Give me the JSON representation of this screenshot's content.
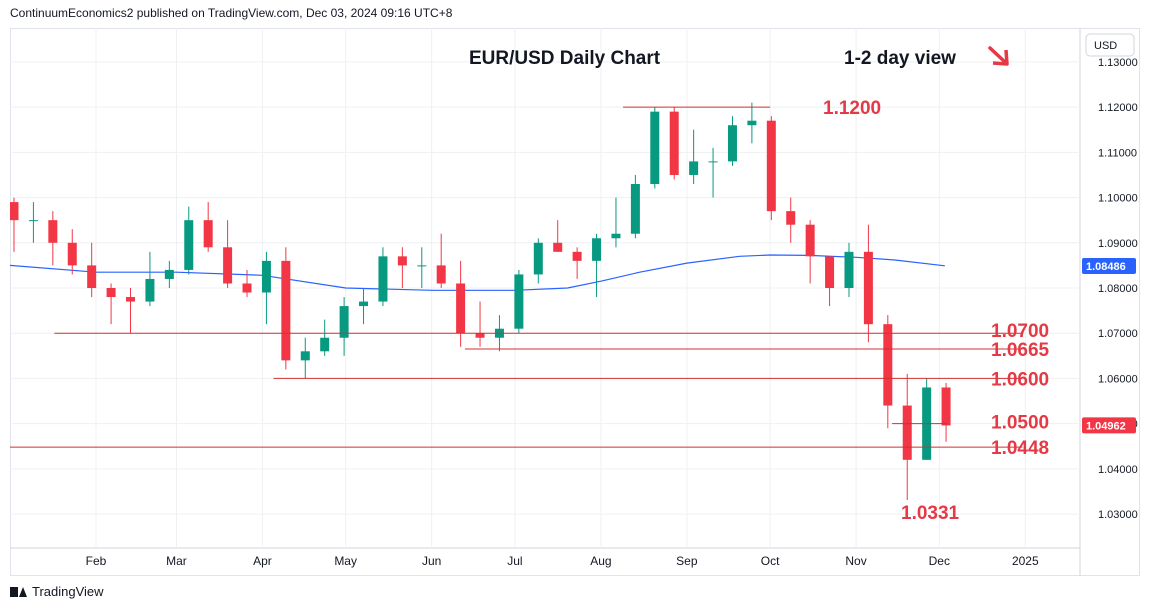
{
  "header": {
    "published_by": "ContinuumEconomics2 published on TradingView.com, Dec 03, 2024 09:16 UTC+8"
  },
  "footer": {
    "brand": "TradingView"
  },
  "colors": {
    "up": "#089981",
    "down": "#f23645",
    "level_line": "#d32f2f",
    "level_text": "#e53945",
    "ma": "#2962ff",
    "grid": "#eef0f3",
    "axis_text": "#131722"
  },
  "chart_data": {
    "type": "candlestick",
    "title": "EUR/USD Daily Chart",
    "subtitle": "1-2 day view",
    "view_arrow": "down-right-arrow",
    "currency": "USD",
    "ylim": [
      1.0225,
      1.1375
    ],
    "y_ticks": [
      "1.13000",
      "1.12000",
      "1.11000",
      "1.10000",
      "1.09000",
      "1.08000",
      "1.07000",
      "1.06000",
      "1.05000",
      "1.04000",
      "1.03000"
    ],
    "x_ticks": [
      "Feb",
      "Mar",
      "Apr",
      "May",
      "Jun",
      "Jul",
      "Aug",
      "Sep",
      "Oct",
      "Nov",
      "Dec",
      "2025"
    ],
    "x_tick_dates": [
      "2024-02-01",
      "2024-03-01",
      "2024-04-01",
      "2024-05-01",
      "2024-06-01",
      "2024-07-01",
      "2024-08-01",
      "2024-09-01",
      "2024-10-01",
      "2024-11-01",
      "2024-12-01",
      "2025-01-01"
    ],
    "price_badges": [
      {
        "label": "1.08486",
        "value": 1.08486,
        "color": "#2962ff"
      },
      {
        "label": "1.04962",
        "value": 1.04962,
        "color": "#f23645"
      }
    ],
    "levels": [
      {
        "label": "1.1200",
        "value": 1.12,
        "from": "2024-08-09",
        "to": "2024-10-01"
      },
      {
        "label": "1.0700",
        "value": 1.07,
        "from": "2024-01-17",
        "to": "2024-12-31"
      },
      {
        "label": "1.0665",
        "value": 1.0665,
        "from": "2024-06-13",
        "to": "2024-12-31"
      },
      {
        "label": "1.0600",
        "value": 1.06,
        "from": "2024-04-05",
        "to": "2024-12-31"
      },
      {
        "label": "1.0500",
        "value": 1.05,
        "from": "2024-11-14",
        "to": "2024-12-04"
      },
      {
        "label": "1.0448",
        "value": 1.0448,
        "from": "2024-01-01",
        "to": "2024-12-31"
      }
    ],
    "annotations": [
      {
        "label": "1.0331",
        "value": 1.0331,
        "date": "2024-11-22"
      }
    ],
    "moving_average": [
      [
        "2024-01-01",
        1.085
      ],
      [
        "2024-02-01",
        1.0835
      ],
      [
        "2024-03-01",
        1.0835
      ],
      [
        "2024-04-01",
        1.0828
      ],
      [
        "2024-05-01",
        1.08
      ],
      [
        "2024-06-01",
        1.0795
      ],
      [
        "2024-07-01",
        1.0795
      ],
      [
        "2024-07-20",
        1.08
      ],
      [
        "2024-08-01",
        1.0815
      ],
      [
        "2024-08-15",
        1.0835
      ],
      [
        "2024-09-01",
        1.0855
      ],
      [
        "2024-09-20",
        1.087
      ],
      [
        "2024-10-01",
        1.0873
      ],
      [
        "2024-10-15",
        1.0872
      ],
      [
        "2024-11-01",
        1.0868
      ],
      [
        "2024-11-15",
        1.0862
      ],
      [
        "2024-12-03",
        1.0849
      ]
    ],
    "ohlc_weekly": [
      {
        "date": "2024-01-01",
        "o": 1.099,
        "h": 1.1,
        "l": 1.088,
        "c": 1.095
      },
      {
        "date": "2024-01-08",
        "o": 1.095,
        "h": 1.099,
        "l": 1.09,
        "c": 1.095
      },
      {
        "date": "2024-01-15",
        "o": 1.095,
        "h": 1.097,
        "l": 1.085,
        "c": 1.09
      },
      {
        "date": "2024-01-22",
        "o": 1.09,
        "h": 1.093,
        "l": 1.083,
        "c": 1.085
      },
      {
        "date": "2024-01-29",
        "o": 1.085,
        "h": 1.09,
        "l": 1.078,
        "c": 1.08
      },
      {
        "date": "2024-02-05",
        "o": 1.08,
        "h": 1.081,
        "l": 1.072,
        "c": 1.078
      },
      {
        "date": "2024-02-12",
        "o": 1.078,
        "h": 1.08,
        "l": 1.07,
        "c": 1.077
      },
      {
        "date": "2024-02-19",
        "o": 1.077,
        "h": 1.088,
        "l": 1.076,
        "c": 1.082
      },
      {
        "date": "2024-02-26",
        "o": 1.082,
        "h": 1.086,
        "l": 1.08,
        "c": 1.084
      },
      {
        "date": "2024-03-04",
        "o": 1.084,
        "h": 1.098,
        "l": 1.083,
        "c": 1.095
      },
      {
        "date": "2024-03-11",
        "o": 1.095,
        "h": 1.099,
        "l": 1.088,
        "c": 1.089
      },
      {
        "date": "2024-03-18",
        "o": 1.089,
        "h": 1.095,
        "l": 1.08,
        "c": 1.081
      },
      {
        "date": "2024-03-25",
        "o": 1.081,
        "h": 1.084,
        "l": 1.078,
        "c": 1.079
      },
      {
        "date": "2024-04-01",
        "o": 1.079,
        "h": 1.088,
        "l": 1.072,
        "c": 1.086
      },
      {
        "date": "2024-04-08",
        "o": 1.086,
        "h": 1.089,
        "l": 1.062,
        "c": 1.064
      },
      {
        "date": "2024-04-15",
        "o": 1.064,
        "h": 1.069,
        "l": 1.06,
        "c": 1.066
      },
      {
        "date": "2024-04-22",
        "o": 1.066,
        "h": 1.073,
        "l": 1.065,
        "c": 1.069
      },
      {
        "date": "2024-04-29",
        "o": 1.069,
        "h": 1.078,
        "l": 1.065,
        "c": 1.076
      },
      {
        "date": "2024-05-06",
        "o": 1.076,
        "h": 1.08,
        "l": 1.072,
        "c": 1.077
      },
      {
        "date": "2024-05-13",
        "o": 1.077,
        "h": 1.089,
        "l": 1.076,
        "c": 1.087
      },
      {
        "date": "2024-05-20",
        "o": 1.087,
        "h": 1.089,
        "l": 1.08,
        "c": 1.085
      },
      {
        "date": "2024-05-27",
        "o": 1.085,
        "h": 1.089,
        "l": 1.08,
        "c": 1.085
      },
      {
        "date": "2024-06-03",
        "o": 1.085,
        "h": 1.092,
        "l": 1.08,
        "c": 1.081
      },
      {
        "date": "2024-06-10",
        "o": 1.081,
        "h": 1.086,
        "l": 1.067,
        "c": 1.07
      },
      {
        "date": "2024-06-17",
        "o": 1.07,
        "h": 1.077,
        "l": 1.067,
        "c": 1.069
      },
      {
        "date": "2024-06-24",
        "o": 1.069,
        "h": 1.074,
        "l": 1.066,
        "c": 1.071
      },
      {
        "date": "2024-07-01",
        "o": 1.071,
        "h": 1.084,
        "l": 1.07,
        "c": 1.083
      },
      {
        "date": "2024-07-08",
        "o": 1.083,
        "h": 1.091,
        "l": 1.081,
        "c": 1.09
      },
      {
        "date": "2024-07-15",
        "o": 1.09,
        "h": 1.095,
        "l": 1.088,
        "c": 1.088
      },
      {
        "date": "2024-07-22",
        "o": 1.088,
        "h": 1.089,
        "l": 1.082,
        "c": 1.086
      },
      {
        "date": "2024-07-29",
        "o": 1.086,
        "h": 1.092,
        "l": 1.078,
        "c": 1.091
      },
      {
        "date": "2024-08-05",
        "o": 1.091,
        "h": 1.1,
        "l": 1.089,
        "c": 1.092
      },
      {
        "date": "2024-08-12",
        "o": 1.092,
        "h": 1.105,
        "l": 1.091,
        "c": 1.103
      },
      {
        "date": "2024-08-19",
        "o": 1.103,
        "h": 1.12,
        "l": 1.102,
        "c": 1.119
      },
      {
        "date": "2024-08-26",
        "o": 1.119,
        "h": 1.12,
        "l": 1.104,
        "c": 1.105
      },
      {
        "date": "2024-09-02",
        "o": 1.105,
        "h": 1.115,
        "l": 1.103,
        "c": 1.108
      },
      {
        "date": "2024-09-09",
        "o": 1.108,
        "h": 1.111,
        "l": 1.1,
        "c": 1.108
      },
      {
        "date": "2024-09-16",
        "o": 1.108,
        "h": 1.118,
        "l": 1.107,
        "c": 1.116
      },
      {
        "date": "2024-09-23",
        "o": 1.116,
        "h": 1.121,
        "l": 1.112,
        "c": 1.117
      },
      {
        "date": "2024-09-30",
        "o": 1.117,
        "h": 1.118,
        "l": 1.095,
        "c": 1.097
      },
      {
        "date": "2024-10-07",
        "o": 1.097,
        "h": 1.1,
        "l": 1.09,
        "c": 1.094
      },
      {
        "date": "2024-10-14",
        "o": 1.094,
        "h": 1.095,
        "l": 1.081,
        "c": 1.087
      },
      {
        "date": "2024-10-21",
        "o": 1.087,
        "h": 1.087,
        "l": 1.076,
        "c": 1.08
      },
      {
        "date": "2024-10-28",
        "o": 1.08,
        "h": 1.09,
        "l": 1.078,
        "c": 1.088
      },
      {
        "date": "2024-11-04",
        "o": 1.088,
        "h": 1.094,
        "l": 1.068,
        "c": 1.072
      },
      {
        "date": "2024-11-11",
        "o": 1.072,
        "h": 1.074,
        "l": 1.049,
        "c": 1.054
      },
      {
        "date": "2024-11-18",
        "o": 1.054,
        "h": 1.061,
        "l": 1.0331,
        "c": 1.042
      },
      {
        "date": "2024-11-25",
        "o": 1.042,
        "h": 1.06,
        "l": 1.042,
        "c": 1.058
      },
      {
        "date": "2024-12-02",
        "o": 1.058,
        "h": 1.059,
        "l": 1.046,
        "c": 1.0496
      }
    ]
  }
}
